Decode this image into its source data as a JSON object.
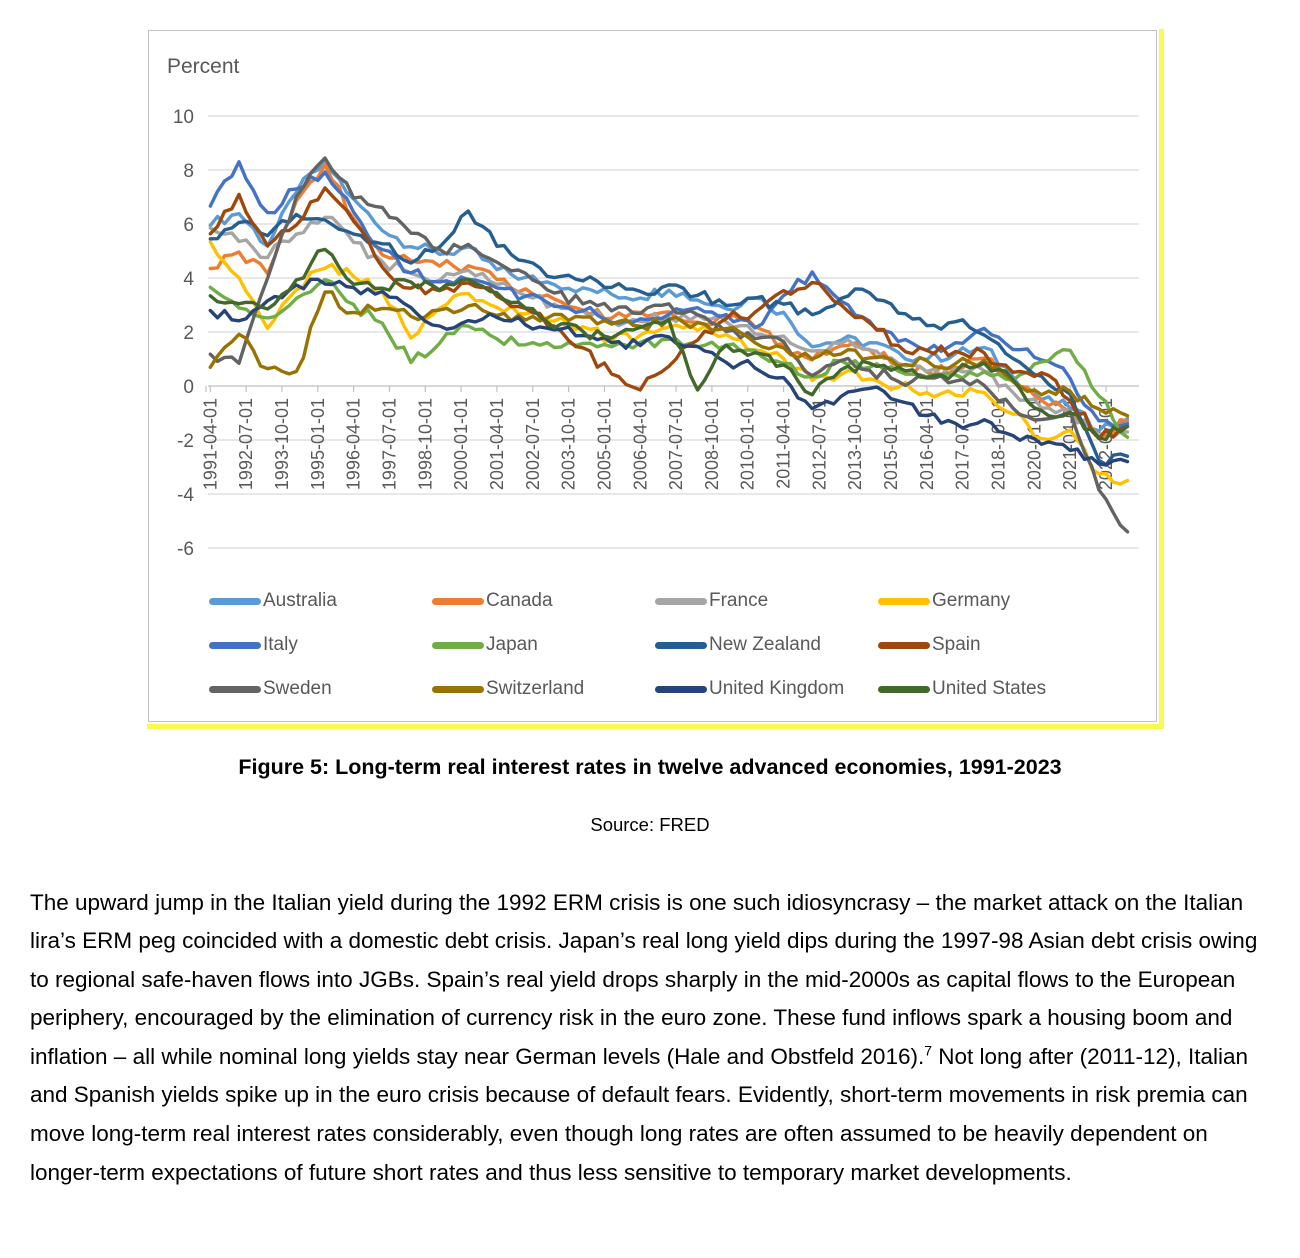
{
  "figure": {
    "axis_title": "Percent",
    "caption": "Figure 5: Long-term real interest rates in twelve advanced economies, 1991-2023",
    "source": "Source: FRED"
  },
  "body_text": {
    "part1": "The upward jump in the Italian yield during the 1992 ERM crisis is one such idiosyncrasy – the market attack on the Italian lira’s ERM peg coincided with a domestic debt crisis. Japan’s real long yield dips during the 1997-98 Asian debt crisis owing to regional safe-haven flows into JGBs. Spain’s real yield drops sharply in the mid-2000s as capital flows to the European periphery, encouraged by the elimination of currency risk in the euro zone. These fund inflows spark a housing boom and inflation – all while nominal long yields stay near German levels (Hale and Obstfeld 2016).",
    "footnote_marker": "7",
    "part2": " Not long after (2011-12), Italian and Spanish yields spike up in the euro crisis because of default fears. Evidently, short-term movements in risk premia can move long-term real interest rates considerably, even though long rates are often assumed to be heavily dependent on longer-term expectations of future short rates and thus less sensitive to temporary market developments."
  },
  "chart_data": {
    "type": "line",
    "title": "Percent",
    "ylabel": "Percent",
    "ylim": [
      -6,
      10
    ],
    "ytick_step": 2,
    "yticks": [
      10,
      8,
      6,
      4,
      2,
      0,
      -2,
      -4,
      -6
    ],
    "grid": true,
    "legend_position": "bottom",
    "x_tick_labels": [
      "1991-04-01",
      "1992-07-01",
      "1993-10-01",
      "1995-01-01",
      "1996-04-01",
      "1997-07-01",
      "1998-10-01",
      "2000-01-01",
      "2001-04-01",
      "2002-07-01",
      "2003-10-01",
      "2005-01-01",
      "2006-04-01",
      "2007-07-01",
      "2008-10-01",
      "2010-01-01",
      "2011-04-01",
      "2012-07-01",
      "2013-10-01",
      "2015-01-01",
      "2016-04-01",
      "2017-07-01",
      "2018-10-01",
      "2020-01-01",
      "2021-04-01",
      "2022-07-01"
    ],
    "x_years": [
      1991,
      1992,
      1993,
      1994,
      1995,
      1996,
      1997,
      1998,
      1999,
      2000,
      2001,
      2002,
      2003,
      2004,
      2005,
      2006,
      2007,
      2008,
      2009,
      2010,
      2011,
      2012,
      2013,
      2014,
      2015,
      2016,
      2017,
      2018,
      2019,
      2020,
      2021,
      2022,
      2023
    ],
    "series": [
      {
        "name": "Australia",
        "color": "#5B9BD5",
        "values": [
          6.0,
          6.4,
          5.2,
          7.2,
          8.3,
          6.9,
          5.8,
          5.2,
          4.9,
          5.1,
          4.3,
          4.0,
          3.8,
          3.6,
          3.4,
          3.3,
          3.6,
          3.2,
          2.9,
          3.3,
          2.7,
          1.5,
          1.7,
          1.6,
          1.2,
          1.0,
          1.2,
          1.4,
          0.4,
          -0.5,
          -0.8,
          -1.6,
          -1.2
        ]
      },
      {
        "name": "Canada",
        "color": "#ED7D31",
        "values": [
          4.3,
          5.0,
          4.1,
          6.8,
          8.2,
          6.2,
          4.9,
          4.6,
          4.5,
          4.4,
          3.9,
          3.6,
          3.2,
          2.8,
          2.5,
          2.7,
          2.7,
          2.3,
          2.5,
          2.2,
          1.5,
          1.0,
          1.5,
          1.4,
          0.7,
          0.5,
          0.7,
          1.0,
          0.2,
          -0.5,
          -1.0,
          -1.8,
          -1.3
        ]
      },
      {
        "name": "France",
        "color": "#A5A5A5",
        "values": [
          5.8,
          5.4,
          4.8,
          5.6,
          6.3,
          5.3,
          4.6,
          4.2,
          3.9,
          4.3,
          3.8,
          3.4,
          3.0,
          2.8,
          2.4,
          2.4,
          2.6,
          2.6,
          2.4,
          1.9,
          1.8,
          1.3,
          1.6,
          1.3,
          0.8,
          0.5,
          0.6,
          0.6,
          -0.2,
          -0.8,
          -1.0,
          -1.9,
          -1.7
        ]
      },
      {
        "name": "Germany",
        "color": "#FFC000",
        "values": [
          5.3,
          4.0,
          2.1,
          3.6,
          4.4,
          4.1,
          3.5,
          1.8,
          2.9,
          3.4,
          2.9,
          2.7,
          2.4,
          2.2,
          1.7,
          1.9,
          2.2,
          2.1,
          1.9,
          1.3,
          1.0,
          0.2,
          0.4,
          0.3,
          0.0,
          -0.3,
          -0.3,
          -0.2,
          -1.0,
          -1.9,
          -1.6,
          -3.3,
          -3.5
        ]
      },
      {
        "name": "Italy",
        "color": "#4472C4",
        "values": [
          6.7,
          8.3,
          6.4,
          7.3,
          7.9,
          6.4,
          5.0,
          4.2,
          3.8,
          4.0,
          3.6,
          3.3,
          3.0,
          2.8,
          2.4,
          2.5,
          2.7,
          2.9,
          2.6,
          2.1,
          3.4,
          4.2,
          3.1,
          2.4,
          1.6,
          1.3,
          1.6,
          2.1,
          1.4,
          1.0,
          0.3,
          -1.3,
          -1.4
        ]
      },
      {
        "name": "Japan",
        "color": "#70AD47",
        "values": [
          3.6,
          2.9,
          2.5,
          3.3,
          3.9,
          3.0,
          2.3,
          0.9,
          1.6,
          2.2,
          1.8,
          1.5,
          1.4,
          1.6,
          1.5,
          1.6,
          1.7,
          1.4,
          1.5,
          1.3,
          0.8,
          0.3,
          0.9,
          0.7,
          0.6,
          0.3,
          0.4,
          0.5,
          0.2,
          0.9,
          1.3,
          -0.4,
          -1.9
        ]
      },
      {
        "name": "New Zealand",
        "color": "#255E91",
        "values": [
          5.5,
          6.1,
          5.6,
          6.3,
          6.2,
          5.6,
          5.3,
          4.6,
          5.2,
          6.5,
          5.2,
          4.6,
          4.0,
          3.9,
          3.7,
          3.5,
          3.7,
          3.4,
          3.0,
          3.2,
          3.0,
          2.6,
          3.3,
          3.5,
          2.7,
          2.2,
          2.4,
          1.9,
          1.0,
          0.4,
          -0.3,
          -2.8,
          -2.6
        ]
      },
      {
        "name": "Spain",
        "color": "#9E480E",
        "values": [
          5.6,
          7.1,
          5.2,
          6.0,
          7.3,
          6.1,
          4.4,
          3.6,
          3.5,
          3.8,
          3.3,
          2.9,
          2.2,
          1.4,
          0.4,
          -0.1,
          0.7,
          1.7,
          2.5,
          2.7,
          3.5,
          3.8,
          3.0,
          2.3,
          1.5,
          1.3,
          1.3,
          1.2,
          0.5,
          0.5,
          -0.5,
          -1.9,
          -1.5
        ]
      },
      {
        "name": "Sweden",
        "color": "#636363",
        "values": [
          1.2,
          0.8,
          4.0,
          7.0,
          8.4,
          7.0,
          6.6,
          5.6,
          5.0,
          5.3,
          4.6,
          4.2,
          3.4,
          3.1,
          2.8,
          2.7,
          3.0,
          2.6,
          2.0,
          1.8,
          1.6,
          0.4,
          1.0,
          0.6,
          0.2,
          0.3,
          0.2,
          0.0,
          -0.8,
          -1.2,
          -1.0,
          -3.8,
          -5.4
        ]
      },
      {
        "name": "Switzerland",
        "color": "#997300",
        "values": [
          0.7,
          1.9,
          0.6,
          0.5,
          3.5,
          2.7,
          2.9,
          2.6,
          2.8,
          3.0,
          2.6,
          2.4,
          2.6,
          2.5,
          2.3,
          2.2,
          2.5,
          2.3,
          2.1,
          1.6,
          1.4,
          1.0,
          1.2,
          1.1,
          0.8,
          0.9,
          0.8,
          0.9,
          0.2,
          -0.3,
          -0.2,
          -0.9,
          -1.1
        ]
      },
      {
        "name": "United Kingdom",
        "color": "#264478",
        "values": [
          2.8,
          2.4,
          3.2,
          3.7,
          3.8,
          3.6,
          3.5,
          2.9,
          2.2,
          2.4,
          2.5,
          2.3,
          2.1,
          1.9,
          1.6,
          1.5,
          1.8,
          1.5,
          0.9,
          0.7,
          0.3,
          -0.8,
          -0.4,
          -0.1,
          -0.6,
          -1.1,
          -1.4,
          -1.2,
          -1.8,
          -2.2,
          -2.4,
          -2.9,
          -2.8
        ]
      },
      {
        "name": "United States",
        "color": "#43682B",
        "values": [
          3.3,
          3.1,
          2.8,
          3.9,
          5.1,
          3.8,
          3.6,
          3.9,
          3.5,
          4.0,
          3.5,
          2.9,
          2.2,
          2.0,
          1.8,
          2.2,
          2.4,
          -0.2,
          1.5,
          1.2,
          0.8,
          -0.3,
          0.6,
          0.8,
          0.7,
          0.3,
          0.5,
          0.9,
          0.2,
          -0.9,
          -1.0,
          -1.9,
          -1.5
        ]
      }
    ],
    "styling": {
      "gridline_color": "#d9d9d9",
      "axis_color": "#bfbfbf",
      "label_color": "#595959",
      "box_border_color": "#c3c3c3",
      "highlight_border_color": "#f9f950",
      "line_width": 3.4
    }
  }
}
